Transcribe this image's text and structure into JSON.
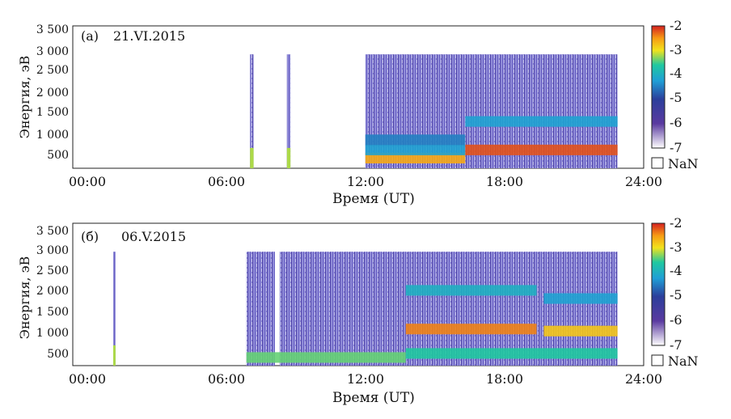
{
  "chart_data": [
    {
      "type": "heatmap",
      "panel_label": "(a)",
      "date": "21.VI.2015",
      "xlabel": "Время (UT)",
      "ylabel": "Энергия, эВ",
      "xticks": [
        "00:00",
        "06:00",
        "12:00",
        "18:00",
        "24:00"
      ],
      "yticks": [
        "500",
        "1 000",
        "1 500",
        "2 000",
        "2 500",
        "3 000",
        "3 500"
      ],
      "xlim_hours": [
        0,
        24
      ],
      "ylim_eV": [
        200,
        3700
      ],
      "colorbar": {
        "ticks": [
          "-2",
          "-3",
          "-4",
          "-5",
          "-6",
          "-7"
        ],
        "range": [
          -7,
          -2
        ],
        "nan_label": "NaN"
      },
      "data_extent_eV": [
        200,
        3000
      ],
      "coverage": [
        {
          "start_h": 7.45,
          "end_h": 7.6,
          "kind": "spike"
        },
        {
          "start_h": 9.0,
          "end_h": 9.15,
          "kind": "spike"
        },
        {
          "start_h": 12.3,
          "end_h": 22.9,
          "kind": "continuous"
        }
      ],
      "bands": [
        {
          "start_h": 12.3,
          "end_h": 16.5,
          "energy_eV": 450,
          "level": -2.6
        },
        {
          "start_h": 12.3,
          "end_h": 16.5,
          "energy_eV": 650,
          "level": -4.2
        },
        {
          "start_h": 12.3,
          "end_h": 16.5,
          "energy_eV": 900,
          "level": -4.5
        },
        {
          "start_h": 16.5,
          "end_h": 22.9,
          "energy_eV": 650,
          "level": -2.2
        },
        {
          "start_h": 16.5,
          "end_h": 22.9,
          "energy_eV": 1350,
          "level": -4.2
        }
      ]
    },
    {
      "type": "heatmap",
      "panel_label": "(б)",
      "date": "06.V.2015",
      "xlabel": "Время (UT)",
      "ylabel": "Энергия, эВ",
      "xticks": [
        "00:00",
        "06:00",
        "12:00",
        "18:00",
        "24:00"
      ],
      "yticks": [
        "500",
        "1 000",
        "1 500",
        "2 000",
        "2 500",
        "3 000",
        "3 500"
      ],
      "xlim_hours": [
        0,
        24
      ],
      "ylim_eV": [
        200,
        3700
      ],
      "colorbar": {
        "ticks": [
          "-2",
          "-3",
          "-4",
          "-5",
          "-6",
          "-7"
        ],
        "range": [
          -7,
          -2
        ],
        "nan_label": "NaN"
      },
      "data_extent_eV": [
        200,
        3000
      ],
      "coverage": [
        {
          "start_h": 1.7,
          "end_h": 1.8,
          "kind": "spike"
        },
        {
          "start_h": 7.3,
          "end_h": 8.5,
          "kind": "continuous"
        },
        {
          "start_h": 8.7,
          "end_h": 22.9,
          "kind": "continuous"
        }
      ],
      "bands": [
        {
          "start_h": 7.3,
          "end_h": 14.0,
          "energy_eV": 400,
          "level": -3.4
        },
        {
          "start_h": 14.0,
          "end_h": 19.5,
          "energy_eV": 1100,
          "level": -2.4
        },
        {
          "start_h": 14.0,
          "end_h": 19.5,
          "energy_eV": 2050,
          "level": -4.0
        },
        {
          "start_h": 14.0,
          "end_h": 22.9,
          "energy_eV": 500,
          "level": -3.6
        },
        {
          "start_h": 19.8,
          "end_h": 22.9,
          "energy_eV": 1050,
          "level": -2.8
        },
        {
          "start_h": 19.8,
          "end_h": 22.9,
          "energy_eV": 1850,
          "level": -4.2
        }
      ]
    }
  ]
}
